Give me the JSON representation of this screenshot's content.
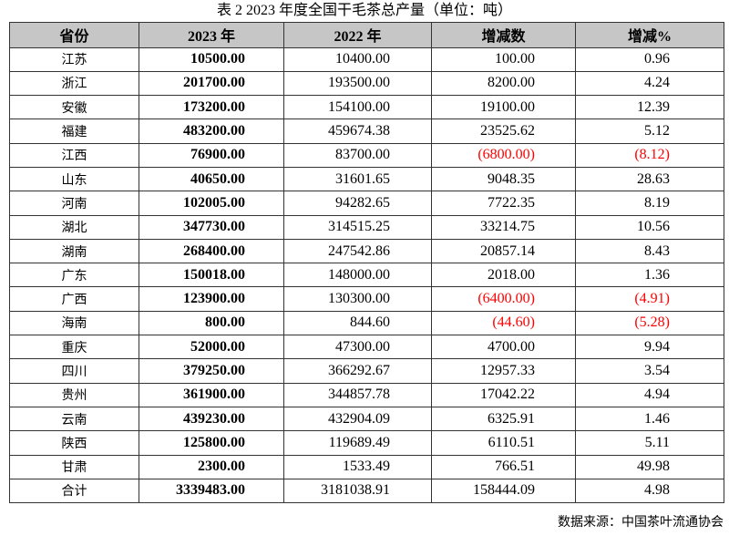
{
  "title": "表 2 2023 年度全国干毛茶总产量（单位：吨）",
  "headers": [
    "省份",
    "2023 年",
    "2022 年",
    "增减数",
    "增减%"
  ],
  "rows": [
    [
      "江苏",
      "10500.00",
      "10400.00",
      "100.00",
      "0.96"
    ],
    [
      "浙江",
      "201700.00",
      "193500.00",
      "8200.00",
      "4.24"
    ],
    [
      "安徽",
      "173200.00",
      "154100.00",
      "19100.00",
      "12.39"
    ],
    [
      "福建",
      "483200.00",
      "459674.38",
      "23525.62",
      "5.12"
    ],
    [
      "江西",
      "76900.00",
      "83700.00",
      "(6800.00)",
      "(8.12)"
    ],
    [
      "山东",
      "40650.00",
      "31601.65",
      "9048.35",
      "28.63"
    ],
    [
      "河南",
      "102005.00",
      "94282.65",
      "7722.35",
      "8.19"
    ],
    [
      "湖北",
      "347730.00",
      "314515.25",
      "33214.75",
      "10.56"
    ],
    [
      "湖南",
      "268400.00",
      "247542.86",
      "20857.14",
      "8.43"
    ],
    [
      "广东",
      "150018.00",
      "148000.00",
      "2018.00",
      "1.36"
    ],
    [
      "广西",
      "123900.00",
      "130300.00",
      "(6400.00)",
      "(4.91)"
    ],
    [
      "海南",
      "800.00",
      "844.60",
      "(44.60)",
      "(5.28)"
    ],
    [
      "重庆",
      "52000.00",
      "47300.00",
      "4700.00",
      "9.94"
    ],
    [
      "四川",
      "379250.00",
      "366292.67",
      "12957.33",
      "3.54"
    ],
    [
      "贵州",
      "361900.00",
      "344857.78",
      "17042.22",
      "4.94"
    ],
    [
      "云南",
      "439230.00",
      "432904.09",
      "6325.91",
      "1.46"
    ],
    [
      "陕西",
      "125800.00",
      "119689.49",
      "6110.51",
      "5.11"
    ],
    [
      "甘肃",
      "2300.00",
      "1533.49",
      "766.51",
      "49.98"
    ],
    [
      "合计",
      "3339483.00",
      "3181038.91",
      "158444.09",
      "4.98"
    ]
  ],
  "source": "数据来源：中国茶叶流通协会",
  "colors": {
    "header_bg": "#c6c6c6",
    "negative": "#ff0000"
  }
}
